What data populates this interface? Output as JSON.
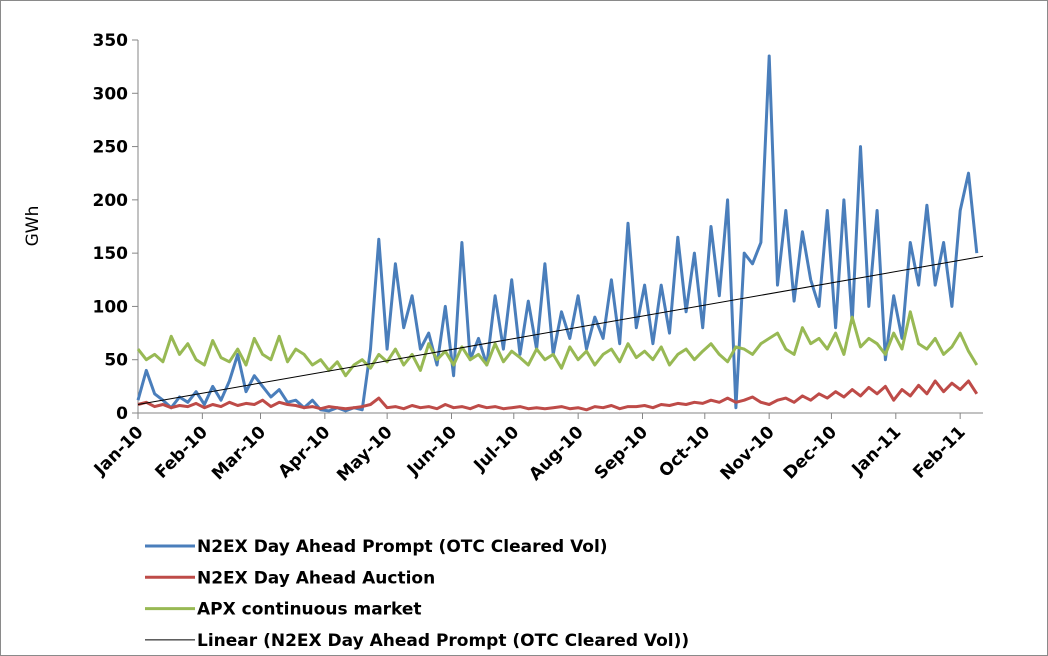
{
  "chart_data": {
    "type": "line",
    "y_label": "GWh",
    "ylim": [
      0,
      350
    ],
    "yticks": [
      0,
      50,
      100,
      150,
      200,
      250,
      300,
      350
    ],
    "xlim": [
      0,
      407
    ],
    "xticks": [
      {
        "value": 0,
        "label": "Jan-10"
      },
      {
        "value": 31,
        "label": "Feb-10"
      },
      {
        "value": 59,
        "label": "Mar-10"
      },
      {
        "value": 90,
        "label": "Apr-10"
      },
      {
        "value": 120,
        "label": "May-10"
      },
      {
        "value": 151,
        "label": "Jun-10"
      },
      {
        "value": 181,
        "label": "Jul-10"
      },
      {
        "value": 212,
        "label": "Aug-10"
      },
      {
        "value": 243,
        "label": "Sep-10"
      },
      {
        "value": 273,
        "label": "Oct-10"
      },
      {
        "value": 304,
        "label": "Nov-10"
      },
      {
        "value": 334,
        "label": "Dec-10"
      },
      {
        "value": 365,
        "label": "Jan-11"
      },
      {
        "value": 396,
        "label": "Feb-11"
      }
    ],
    "x": [
      0,
      4,
      8,
      12,
      16,
      20,
      24,
      28,
      32,
      36,
      40,
      44,
      48,
      52,
      56,
      60,
      64,
      68,
      72,
      76,
      80,
      84,
      88,
      92,
      96,
      100,
      104,
      108,
      112,
      116,
      120,
      124,
      128,
      132,
      136,
      140,
      144,
      148,
      152,
      156,
      160,
      164,
      168,
      172,
      176,
      180,
      184,
      188,
      192,
      196,
      200,
      204,
      208,
      212,
      216,
      220,
      224,
      228,
      232,
      236,
      240,
      244,
      248,
      252,
      256,
      260,
      264,
      268,
      272,
      276,
      280,
      284,
      288,
      292,
      296,
      300,
      304,
      308,
      312,
      316,
      320,
      324,
      328,
      332,
      336,
      340,
      344,
      348,
      352,
      356,
      360,
      364,
      368,
      372,
      376,
      380,
      384,
      388,
      392,
      396,
      400,
      404
    ],
    "series": [
      {
        "name": "N2EX Day Ahead Prompt (OTC Cleared Vol)",
        "color": "#4a7ebb",
        "width": 3,
        "values": [
          12,
          40,
          18,
          12,
          5,
          15,
          10,
          20,
          8,
          25,
          12,
          30,
          55,
          20,
          35,
          25,
          15,
          22,
          10,
          12,
          5,
          12,
          3,
          2,
          5,
          2,
          5,
          3,
          60,
          163,
          60,
          140,
          80,
          110,
          60,
          75,
          45,
          100,
          35,
          160,
          50,
          70,
          45,
          110,
          60,
          125,
          55,
          105,
          60,
          140,
          55,
          95,
          70,
          110,
          60,
          90,
          70,
          125,
          65,
          178,
          80,
          120,
          65,
          120,
          75,
          165,
          95,
          150,
          80,
          175,
          110,
          200,
          5,
          150,
          140,
          160,
          335,
          120,
          190,
          105,
          170,
          125,
          100,
          190,
          80,
          200,
          85,
          250,
          100,
          190,
          50,
          110,
          70,
          160,
          120,
          195,
          120,
          160,
          100,
          190,
          225,
          150
        ]
      },
      {
        "name": "N2EX Day Ahead Auction",
        "color": "#be4b48",
        "width": 3,
        "values": [
          8,
          10,
          6,
          8,
          5,
          7,
          6,
          9,
          5,
          8,
          6,
          10,
          7,
          9,
          8,
          12,
          6,
          10,
          8,
          7,
          5,
          6,
          4,
          6,
          5,
          4,
          5,
          6,
          8,
          14,
          5,
          6,
          4,
          7,
          5,
          6,
          4,
          8,
          5,
          6,
          4,
          7,
          5,
          6,
          4,
          5,
          6,
          4,
          5,
          4,
          5,
          6,
          4,
          5,
          3,
          6,
          5,
          7,
          4,
          6,
          6,
          7,
          5,
          8,
          7,
          9,
          8,
          10,
          9,
          12,
          10,
          14,
          10,
          12,
          15,
          10,
          8,
          12,
          14,
          10,
          16,
          12,
          18,
          14,
          20,
          15,
          22,
          16,
          24,
          18,
          25,
          12,
          22,
          16,
          26,
          18,
          30,
          20,
          28,
          22,
          30,
          18
        ]
      },
      {
        "name": "APX continuous market",
        "color": "#98b954",
        "width": 3,
        "values": [
          60,
          50,
          55,
          48,
          72,
          55,
          65,
          50,
          45,
          68,
          52,
          48,
          60,
          45,
          70,
          55,
          50,
          72,
          48,
          60,
          55,
          45,
          50,
          40,
          48,
          35,
          45,
          50,
          42,
          55,
          48,
          60,
          45,
          55,
          40,
          65,
          50,
          58,
          45,
          62,
          50,
          55,
          45,
          65,
          48,
          58,
          52,
          45,
          60,
          50,
          55,
          42,
          62,
          50,
          58,
          45,
          55,
          60,
          48,
          65,
          52,
          58,
          50,
          62,
          45,
          55,
          60,
          50,
          58,
          65,
          55,
          48,
          62,
          60,
          55,
          65,
          70,
          75,
          60,
          55,
          80,
          65,
          70,
          60,
          75,
          55,
          90,
          62,
          70,
          65,
          55,
          75,
          60,
          95,
          65,
          60,
          70,
          55,
          62,
          75,
          58,
          45
        ]
      },
      {
        "name": "Linear (N2EX Day Ahead Prompt (OTC Cleared Vol))",
        "color": "#000000",
        "width": 1,
        "x": [
          0,
          407
        ],
        "values": [
          8,
          147
        ]
      }
    ]
  }
}
